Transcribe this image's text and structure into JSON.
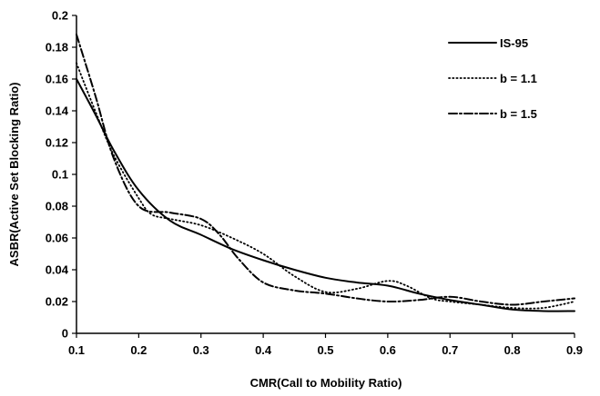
{
  "chart_data": {
    "type": "line",
    "title": "",
    "xlabel": "CMR(Call to Mobility Ratio)",
    "ylabel": "ASBR(Active Set Blocking Ratio)",
    "xlim": [
      0.1,
      0.9
    ],
    "ylim": [
      0,
      0.2
    ],
    "xticks": [
      0.1,
      0.2,
      0.3,
      0.4,
      0.5,
      0.6,
      0.7,
      0.8,
      0.9
    ],
    "yticks": [
      0,
      0.02,
      0.04,
      0.06,
      0.08,
      0.1,
      0.12,
      0.14,
      0.16,
      0.18,
      0.2
    ],
    "xtick_labels": [
      "0.1",
      "0.2",
      "0.3",
      "0.4",
      "0.5",
      "0.6",
      "0.7",
      "0.8",
      "0.9"
    ],
    "ytick_labels": [
      "0",
      "0.02",
      "0.04",
      "0.06",
      "0.08",
      "0.1",
      "0.12",
      "0.14",
      "0.16",
      "0.18",
      "0.2"
    ],
    "grid": false,
    "legend": "top-right",
    "series": [
      {
        "name": "IS-95",
        "style": "solid",
        "color": "#000000",
        "x": [
          0.1,
          0.13,
          0.16,
          0.2,
          0.25,
          0.3,
          0.35,
          0.4,
          0.45,
          0.5,
          0.55,
          0.6,
          0.65,
          0.7,
          0.75,
          0.8,
          0.85,
          0.9
        ],
        "y": [
          0.16,
          0.138,
          0.115,
          0.09,
          0.071,
          0.062,
          0.053,
          0.046,
          0.04,
          0.035,
          0.032,
          0.03,
          0.025,
          0.021,
          0.018,
          0.015,
          0.014,
          0.014
        ]
      },
      {
        "name": "b = 1.1",
        "style": "dotted",
        "color": "#000000",
        "x": [
          0.1,
          0.13,
          0.16,
          0.2,
          0.22,
          0.25,
          0.3,
          0.35,
          0.4,
          0.45,
          0.5,
          0.55,
          0.6,
          0.63,
          0.67,
          0.7,
          0.75,
          0.8,
          0.85,
          0.9
        ],
        "y": [
          0.17,
          0.14,
          0.112,
          0.085,
          0.075,
          0.072,
          0.068,
          0.06,
          0.05,
          0.036,
          0.026,
          0.028,
          0.033,
          0.03,
          0.022,
          0.02,
          0.018,
          0.016,
          0.016,
          0.02
        ]
      },
      {
        "name": "b = 1.5",
        "style": "dashdot",
        "color": "#000000",
        "x": [
          0.1,
          0.13,
          0.16,
          0.2,
          0.25,
          0.3,
          0.33,
          0.36,
          0.4,
          0.45,
          0.5,
          0.55,
          0.6,
          0.65,
          0.7,
          0.75,
          0.8,
          0.85,
          0.9
        ],
        "y": [
          0.188,
          0.15,
          0.11,
          0.08,
          0.076,
          0.072,
          0.062,
          0.047,
          0.032,
          0.027,
          0.025,
          0.022,
          0.02,
          0.021,
          0.023,
          0.02,
          0.018,
          0.02,
          0.022
        ]
      }
    ]
  }
}
